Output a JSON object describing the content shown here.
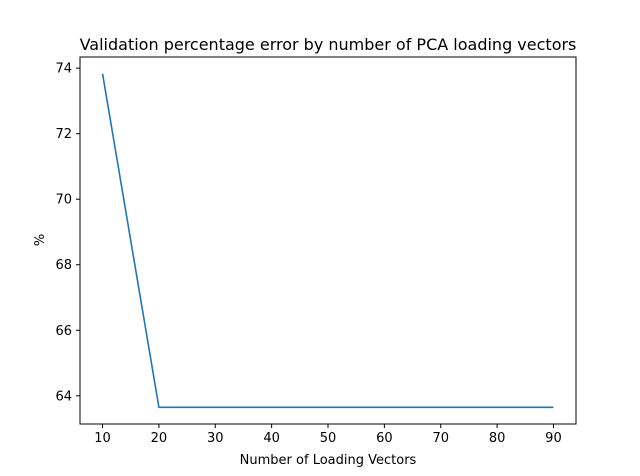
{
  "chart_data": {
    "type": "line",
    "title": "Validation percentage error by number of PCA loading vectors",
    "xlabel": "Number of Loading Vectors",
    "ylabel": "%",
    "x": [
      10,
      20,
      30,
      40,
      50,
      60,
      70,
      80,
      90
    ],
    "series": [
      {
        "values": [
          73.83,
          63.65,
          63.65,
          63.65,
          63.65,
          63.65,
          63.65,
          63.65,
          63.65
        ]
      }
    ],
    "xlim": [
      6,
      94
    ],
    "ylim": [
      63.14,
      74.34
    ],
    "xticks": [
      10,
      20,
      30,
      40,
      50,
      60,
      70,
      80,
      90
    ],
    "yticks": [
      64,
      66,
      68,
      70,
      72,
      74
    ],
    "grid": false,
    "line_color": "#1f77b4"
  }
}
